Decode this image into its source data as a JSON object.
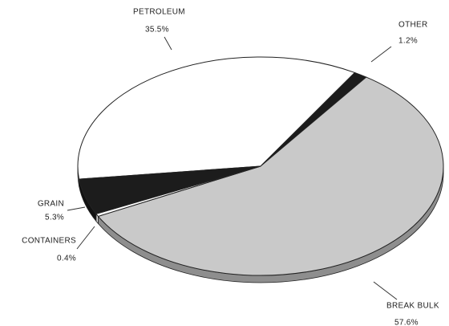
{
  "chart_data": {
    "type": "pie",
    "categories": [
      "PETROLEUM",
      "OTHER",
      "BREAK BULK",
      "CONTAINERS",
      "GRAIN"
    ],
    "values": [
      35.5,
      1.2,
      57.6,
      0.4,
      5.3
    ],
    "value_labels": [
      "35.5%",
      "1.2%",
      "57.6%",
      "0.4%",
      "5.3%"
    ],
    "colors": [
      "#ffffff",
      "#1c1c1c",
      "#c9c9c9",
      "#ffffff",
      "#1c1c1c"
    ]
  }
}
